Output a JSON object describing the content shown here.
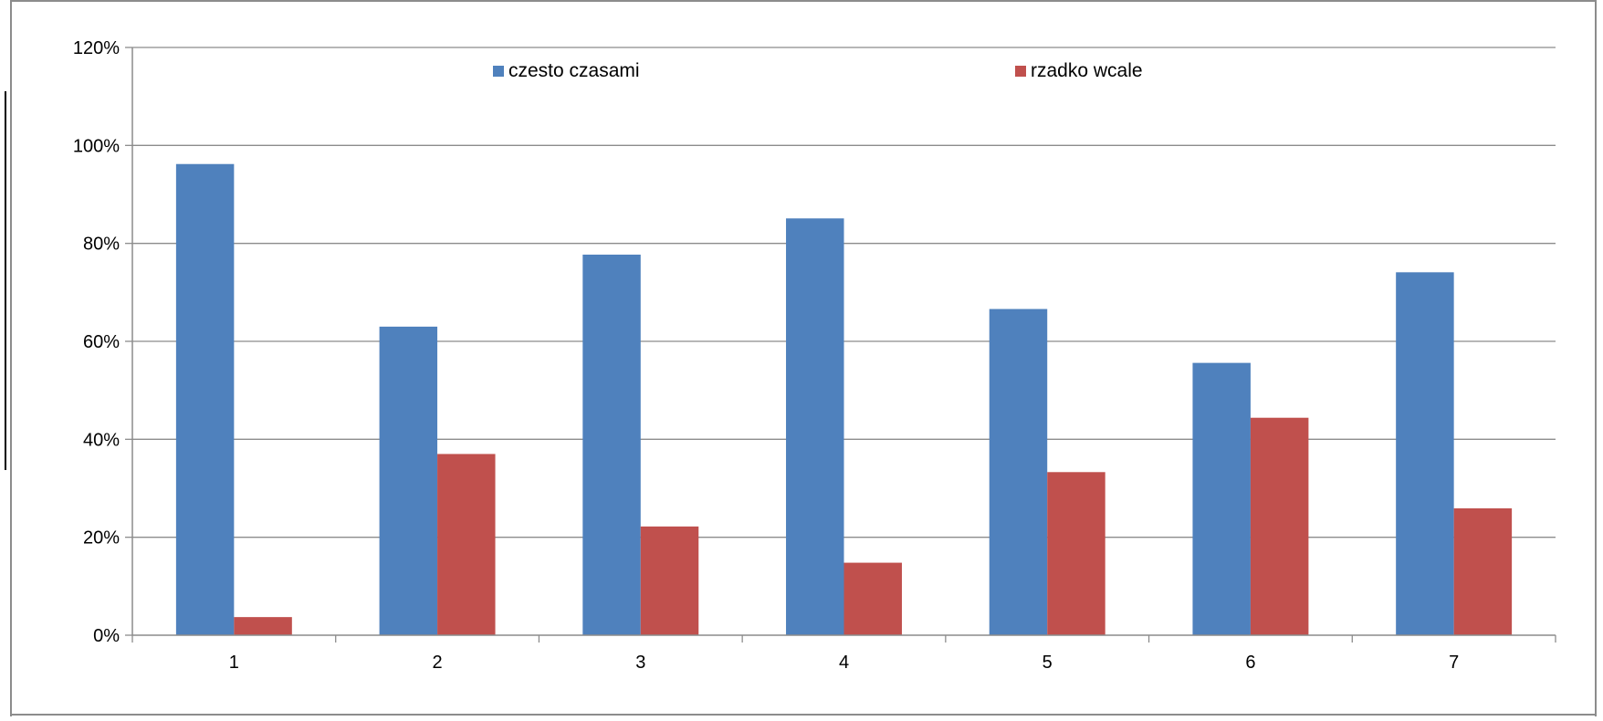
{
  "chart_data": {
    "type": "bar",
    "title": "",
    "xlabel": "",
    "ylabel": "",
    "categories": [
      "1",
      "2",
      "3",
      "4",
      "5",
      "6",
      "7"
    ],
    "series": [
      {
        "name": "czesto czasami",
        "color": "#4f81bd",
        "values": [
          96.2,
          63.0,
          77.7,
          85.1,
          66.6,
          55.6,
          74.1
        ]
      },
      {
        "name": "rzadko wcale",
        "color": "#c0504d",
        "values": [
          3.7,
          37.0,
          22.2,
          14.8,
          33.3,
          44.4,
          25.9
        ]
      }
    ],
    "ylim": [
      0,
      120
    ],
    "yticks": [
      0,
      20,
      40,
      60,
      80,
      100,
      120
    ],
    "ytick_labels": [
      "0%",
      "20%",
      "40%",
      "60%",
      "80%",
      "100%",
      "120%"
    ],
    "grid": true,
    "legend_position": "top"
  }
}
